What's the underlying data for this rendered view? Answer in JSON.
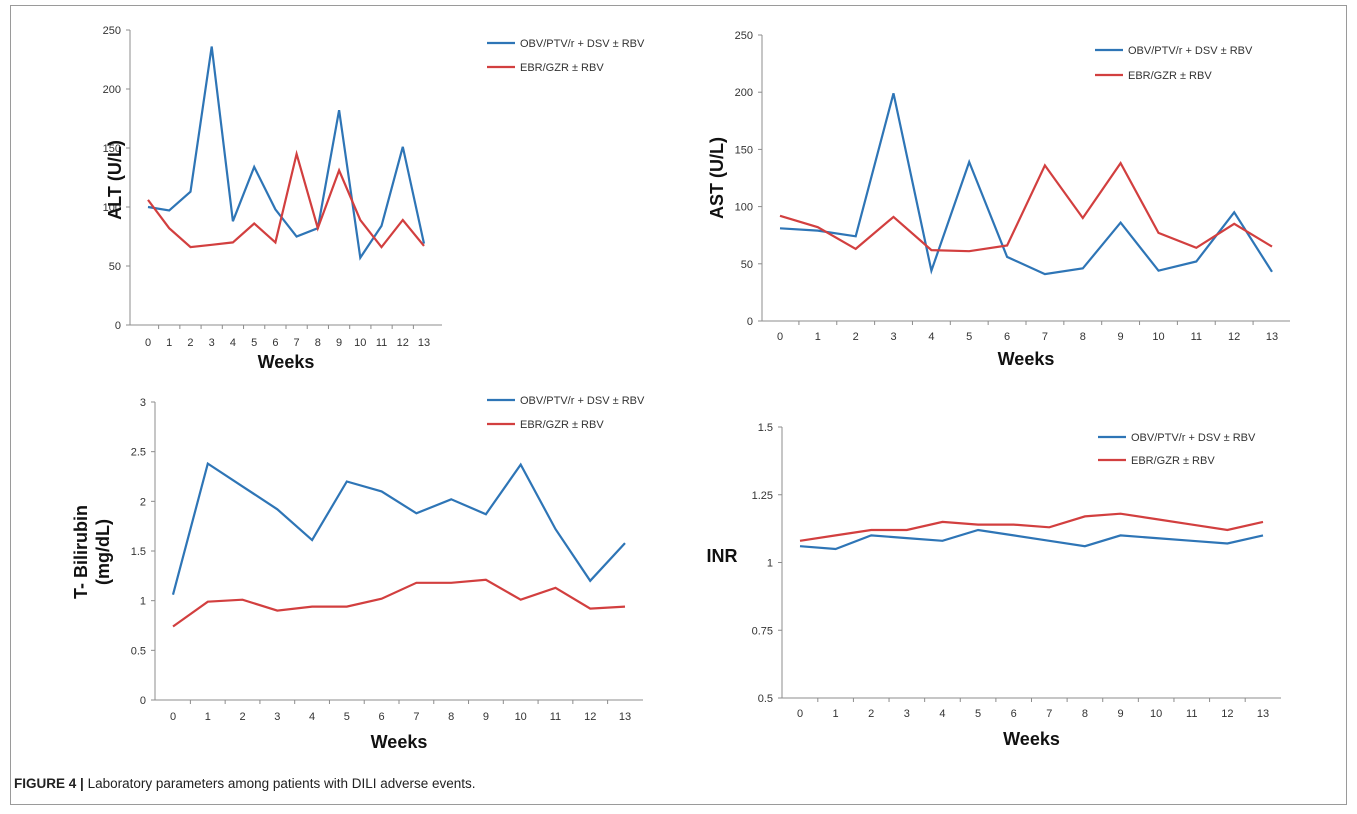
{
  "figure": {
    "label": "FIGURE 4 |",
    "caption": "Laboratory parameters among patients with DILI adverse events."
  },
  "colors": {
    "series1": "#2e75b6",
    "series2": "#d23f3f",
    "axis": "#8c8c8c",
    "text": "#333333"
  },
  "chart_data": [
    {
      "type": "line",
      "ylabel": "ALT  (U/L)",
      "xlabel": "Weeks",
      "x": [
        0,
        1,
        2,
        3,
        4,
        5,
        6,
        7,
        8,
        9,
        10,
        11,
        12,
        13
      ],
      "ylim": [
        0,
        250
      ],
      "yticks": [
        "0",
        "50",
        "100",
        "150",
        "200",
        "250"
      ],
      "legend_position": "top-right",
      "series": [
        {
          "name": "OBV/PTV/r + DSV ± RBV",
          "values": [
            100,
            97,
            113,
            236,
            88,
            134,
            98,
            75,
            82,
            182,
            57,
            84,
            151,
            69
          ]
        },
        {
          "name": "EBR/GZR ± RBV",
          "values": [
            106,
            82,
            66,
            68,
            70,
            86,
            70,
            145,
            82,
            131,
            89,
            66,
            89,
            67
          ]
        }
      ]
    },
    {
      "type": "line",
      "ylabel": "AST  (U/L)",
      "xlabel": "Weeks",
      "x": [
        0,
        1,
        2,
        3,
        4,
        5,
        6,
        7,
        8,
        9,
        10,
        11,
        12,
        13
      ],
      "ylim": [
        0,
        250
      ],
      "yticks": [
        "0",
        "50",
        "100",
        "150",
        "200",
        "250"
      ],
      "legend_position": "top-right",
      "series": [
        {
          "name": "OBV/PTV/r + DSV ± RBV",
          "values": [
            81,
            79,
            74,
            199,
            44,
            139,
            56,
            41,
            46,
            86,
            44,
            52,
            95,
            43
          ]
        },
        {
          "name": "EBR/GZR ± RBV",
          "values": [
            92,
            82,
            63,
            91,
            62,
            61,
            66,
            136,
            90,
            138,
            77,
            64,
            85,
            65
          ]
        }
      ]
    },
    {
      "type": "line",
      "ylabel": "T- Bilirubin\n(mg/dL)",
      "xlabel": "Weeks",
      "x": [
        0,
        1,
        2,
        3,
        4,
        5,
        6,
        7,
        8,
        9,
        10,
        11,
        12,
        13
      ],
      "ylim": [
        0,
        3
      ],
      "yticks": [
        "0",
        "0.5",
        "1",
        "1.5",
        "2",
        "2.5",
        "3"
      ],
      "legend_position": "top-right",
      "series": [
        {
          "name": "OBV/PTV/r + DSV ± RBV",
          "values": [
            1.06,
            2.38,
            2.15,
            1.92,
            1.61,
            2.2,
            2.1,
            1.88,
            2.02,
            1.87,
            2.37,
            1.72,
            1.2,
            1.58
          ]
        },
        {
          "name": "EBR/GZR ± RBV",
          "values": [
            0.74,
            0.99,
            1.01,
            0.9,
            0.94,
            0.94,
            1.02,
            1.18,
            1.18,
            1.21,
            1.01,
            1.13,
            0.92,
            0.94
          ]
        }
      ]
    },
    {
      "type": "line",
      "ylabel": "INR",
      "xlabel": "Weeks",
      "x": [
        0,
        1,
        2,
        3,
        4,
        5,
        6,
        7,
        8,
        9,
        10,
        11,
        12,
        13
      ],
      "ylim": [
        0.5,
        1.5
      ],
      "yticks": [
        "0.5",
        "0.75",
        "1",
        "1.25",
        "1.5"
      ],
      "legend_position": "top-right",
      "series": [
        {
          "name": "OBV/PTV/r + DSV ± RBV",
          "values": [
            1.06,
            1.05,
            1.1,
            1.09,
            1.08,
            1.12,
            1.1,
            1.08,
            1.06,
            1.1,
            1.09,
            1.08,
            1.07,
            1.1
          ]
        },
        {
          "name": "EBR/GZR ± RBV",
          "values": [
            1.08,
            1.1,
            1.12,
            1.12,
            1.15,
            1.14,
            1.14,
            1.13,
            1.17,
            1.18,
            1.16,
            1.14,
            1.12,
            1.15
          ]
        }
      ]
    }
  ]
}
